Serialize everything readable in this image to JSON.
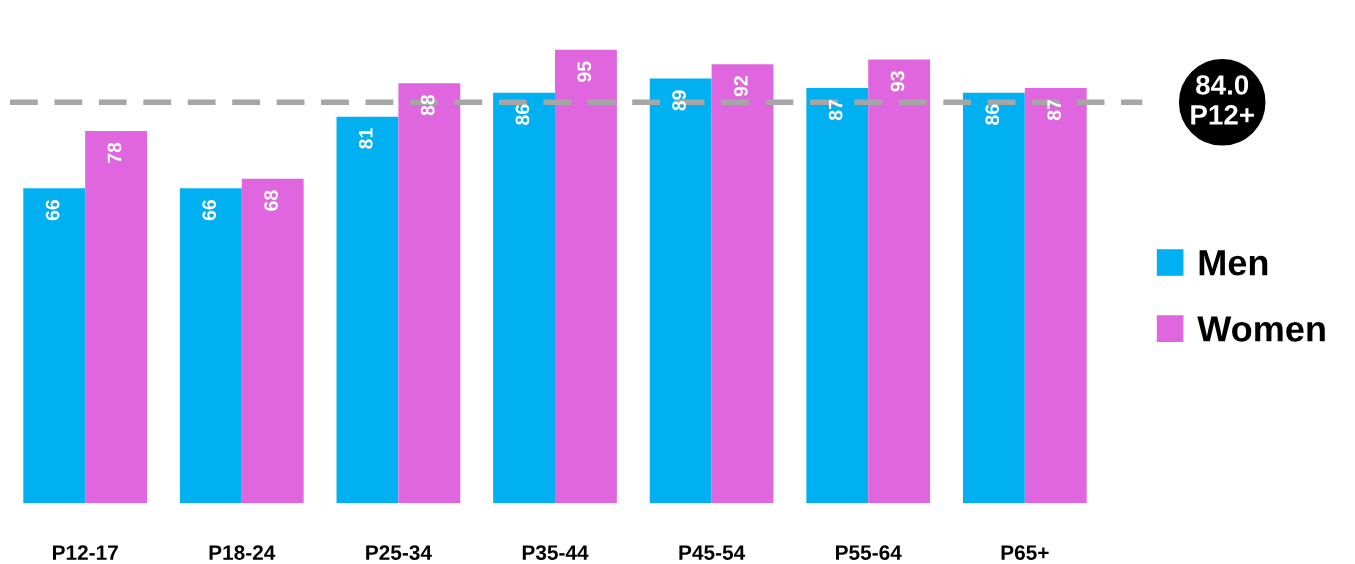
{
  "chart_data": {
    "type": "bar",
    "categories": [
      "P12-17",
      "P18-24",
      "P25-34",
      "P35-44",
      "P45-54",
      "P55-64",
      "P65+"
    ],
    "series": [
      {
        "name": "Men",
        "color": "#00b0f0",
        "values": [
          66,
          66,
          81,
          86,
          89,
          87,
          86
        ]
      },
      {
        "name": "Women",
        "color": "#e066e0",
        "values": [
          78,
          68,
          88,
          95,
          92,
          93,
          87
        ]
      }
    ],
    "data_labels": true,
    "legend": "right",
    "grid": false,
    "tick_labels": "x",
    "ref_lines": [
      {
        "axis": "y",
        "value": 84.0,
        "label": "84.0\nP12+",
        "color": "#a6a6a6",
        "line_style": "dashed"
      }
    ]
  }
}
